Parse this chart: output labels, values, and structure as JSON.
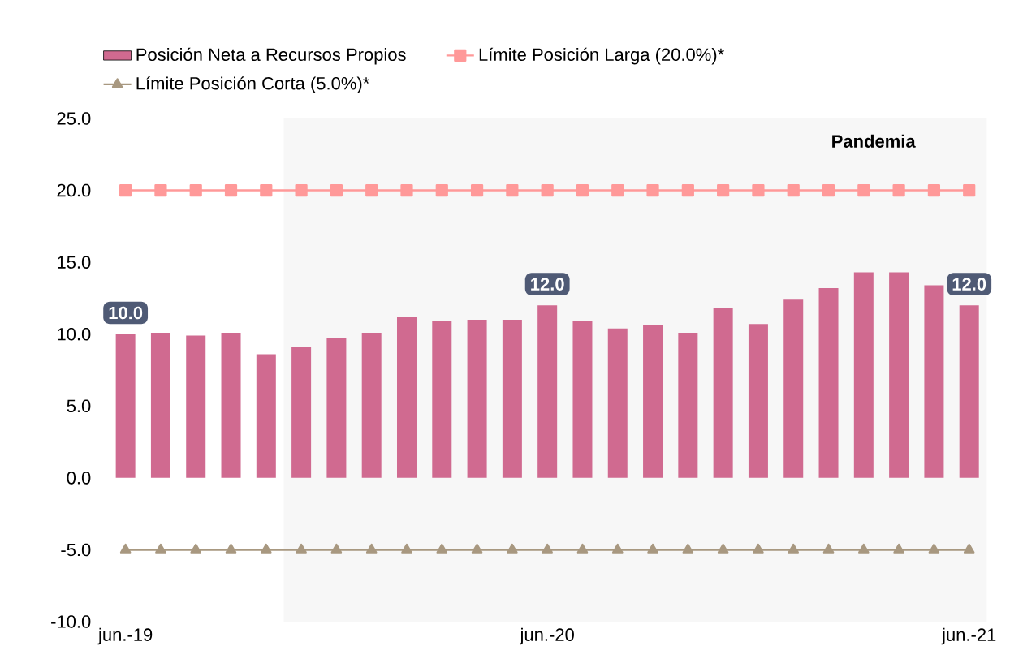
{
  "chart_data": {
    "type": "bar",
    "categories": [
      "jun.-19",
      null,
      null,
      null,
      null,
      null,
      null,
      null,
      null,
      null,
      null,
      null,
      "jun.-20",
      null,
      null,
      null,
      null,
      null,
      null,
      null,
      null,
      null,
      null,
      null,
      "jun.-21"
    ],
    "series": [
      {
        "name": "Posición Neta a Recursos Propios",
        "color": "#d06a90",
        "values": [
          10.0,
          10.1,
          9.9,
          10.1,
          8.6,
          9.1,
          9.7,
          10.1,
          11.2,
          10.9,
          11.0,
          11.0,
          12.0,
          10.9,
          10.4,
          10.6,
          10.1,
          11.8,
          10.7,
          12.4,
          13.2,
          14.3,
          14.3,
          13.4,
          12.0
        ],
        "value_labels": [
          "10.0",
          null,
          null,
          null,
          null,
          null,
          null,
          null,
          null,
          null,
          null,
          null,
          "12.0",
          null,
          null,
          null,
          null,
          null,
          null,
          null,
          null,
          null,
          null,
          null,
          "12.0"
        ]
      },
      {
        "name": "Límite Posición Larga (20.0%)*",
        "type": "line",
        "color": "#ff9999",
        "marker": "square",
        "values": [
          20,
          20,
          20,
          20,
          20,
          20,
          20,
          20,
          20,
          20,
          20,
          20,
          20,
          20,
          20,
          20,
          20,
          20,
          20,
          20,
          20,
          20,
          20,
          20,
          20
        ]
      },
      {
        "name": "Límite Posición Corta (5.0%)*",
        "type": "line",
        "color": "#a89880",
        "marker": "triangle",
        "values": [
          -5,
          -5,
          -5,
          -5,
          -5,
          -5,
          -5,
          -5,
          -5,
          -5,
          -5,
          -5,
          -5,
          -5,
          -5,
          -5,
          -5,
          -5,
          -5,
          -5,
          -5,
          -5,
          -5,
          -5,
          -5
        ]
      }
    ],
    "ylim": [
      -10,
      25
    ],
    "yticks": [
      {
        "value": -10,
        "label": "-10.0"
      },
      {
        "value": -5,
        "label": "-5.0"
      },
      {
        "value": 0,
        "label": "0.0"
      },
      {
        "value": 5,
        "label": "5.0"
      },
      {
        "value": 10,
        "label": "10.0"
      },
      {
        "value": 15,
        "label": "15.0"
      },
      {
        "value": 20,
        "label": "20.0"
      },
      {
        "value": 25,
        "label": "25.0"
      }
    ],
    "annotations": [
      "Pandemia"
    ],
    "legend": "top"
  }
}
